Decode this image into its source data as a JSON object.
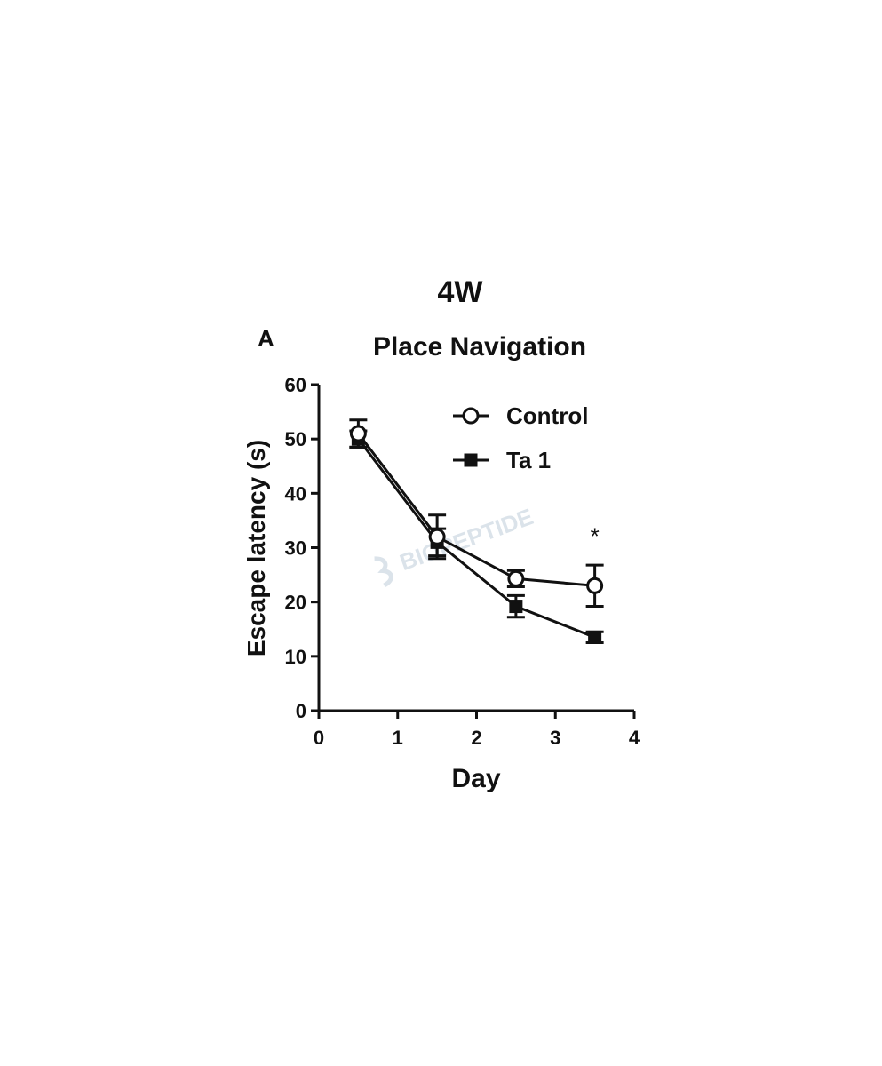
{
  "figure": {
    "title": "4W",
    "panel_label": "A",
    "watermark": "BIOPEPTIDE"
  },
  "chart_data": {
    "type": "line",
    "title": "Place Navigation",
    "xlabel": "Day",
    "ylabel": "Escape latency (s)",
    "xlim": [
      0,
      4
    ],
    "ylim": [
      0,
      60
    ],
    "xticks": [
      0,
      1,
      2,
      3,
      4
    ],
    "yticks": [
      0,
      10,
      20,
      30,
      40,
      50,
      60
    ],
    "legend_position": "top-right",
    "grid": false,
    "series": [
      {
        "name": "Control",
        "marker": "open-circle",
        "x": [
          0.5,
          1.5,
          2.5,
          3.5
        ],
        "y": [
          51,
          32,
          24.3,
          23
        ],
        "err": [
          2.5,
          4,
          1.5,
          3.8
        ]
      },
      {
        "name": "Ta 1",
        "marker": "filled-square",
        "x": [
          0.5,
          1.5,
          2.5,
          3.5
        ],
        "y": [
          50,
          31,
          19.2,
          13.5
        ],
        "err": [
          1.5,
          2.5,
          2,
          1
        ]
      }
    ],
    "annotations": [
      {
        "text": "*",
        "x": 3.5,
        "y": 32
      }
    ]
  }
}
